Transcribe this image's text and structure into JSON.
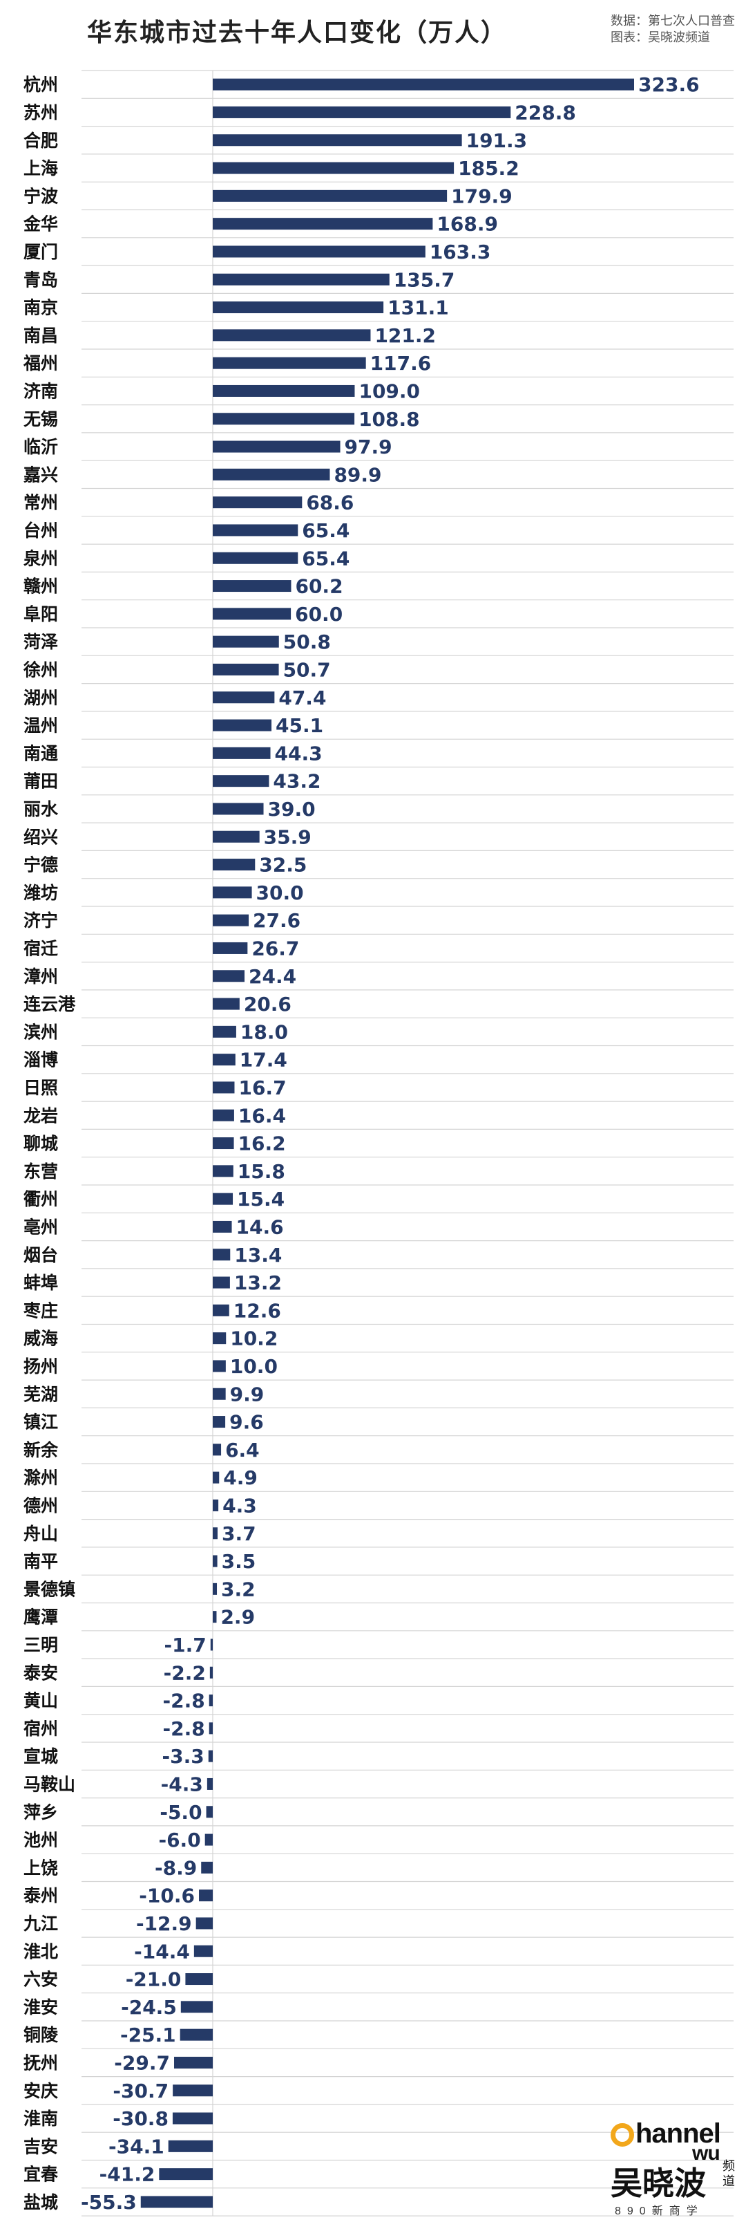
{
  "header": {
    "title": "华东城市过去十年人口变化（万人）",
    "source_line1": "数据：第七次人口普查",
    "source_line2": "图表：吴晓波频道"
  },
  "logo": {
    "top": "hannel",
    "top_wu": "wu",
    "main": "吴晓波",
    "side": "频道",
    "sub": "890新商学"
  },
  "colors": {
    "bar": "#253a67",
    "grid": "#d4d4d4",
    "label": "#253a67",
    "category": "#111111"
  },
  "chart_data": {
    "type": "bar",
    "orientation": "horizontal",
    "title": "华东城市过去十年人口变化（万人）",
    "grid": true,
    "categories": [
      "杭州",
      "苏州",
      "合肥",
      "上海",
      "宁波",
      "金华",
      "厦门",
      "青岛",
      "南京",
      "南昌",
      "福州",
      "济南",
      "无锡",
      "临沂",
      "嘉兴",
      "常州",
      "台州",
      "泉州",
      "赣州",
      "阜阳",
      "菏泽",
      "徐州",
      "湖州",
      "温州",
      "南通",
      "莆田",
      "丽水",
      "绍兴",
      "宁德",
      "潍坊",
      "济宁",
      "宿迁",
      "漳州",
      "连云港",
      "滨州",
      "淄博",
      "日照",
      "龙岩",
      "聊城",
      "东营",
      "衢州",
      "亳州",
      "烟台",
      "蚌埠",
      "枣庄",
      "威海",
      "扬州",
      "芜湖",
      "镇江",
      "新余",
      "滁州",
      "德州",
      "舟山",
      "南平",
      "景德镇",
      "鹰潭",
      "三明",
      "泰安",
      "黄山",
      "宿州",
      "宣城",
      "马鞍山",
      "萍乡",
      "池州",
      "上饶",
      "泰州",
      "九江",
      "淮北",
      "六安",
      "淮安",
      "铜陵",
      "抚州",
      "安庆",
      "淮南",
      "吉安",
      "宜春",
      "盐城"
    ],
    "values": [
      323.6,
      228.8,
      191.3,
      185.2,
      179.9,
      168.9,
      163.3,
      135.7,
      131.1,
      121.2,
      117.6,
      109.0,
      108.8,
      97.9,
      89.9,
      68.6,
      65.4,
      65.4,
      60.2,
      60.0,
      50.8,
      50.7,
      47.4,
      45.1,
      44.3,
      43.2,
      39.0,
      35.9,
      32.5,
      30.0,
      27.6,
      26.7,
      24.4,
      20.6,
      18.0,
      17.4,
      16.7,
      16.4,
      16.2,
      15.8,
      15.4,
      14.6,
      13.4,
      13.2,
      12.6,
      10.2,
      10.0,
      9.9,
      9.6,
      6.4,
      4.9,
      4.3,
      3.7,
      3.5,
      3.2,
      2.9,
      -1.7,
      -2.2,
      -2.8,
      -2.8,
      -3.3,
      -4.3,
      -5.0,
      -6.0,
      -8.9,
      -10.6,
      -12.9,
      -14.4,
      -21.0,
      -24.5,
      -25.1,
      -29.7,
      -30.7,
      -30.8,
      -34.1,
      -41.2,
      -55.3
    ],
    "value_labels": [
      "323.6",
      "228.8",
      "191.3",
      "185.2",
      "179.9",
      "168.9",
      "163.3",
      "135.7",
      "131.1",
      "121.2",
      "117.6",
      "109.0",
      "108.8",
      "97.9",
      "89.9",
      "68.6",
      "65.4",
      "65.4",
      "60.2",
      "60.0",
      "50.8",
      "50.7",
      "47.4",
      "45.1",
      "44.3",
      "43.2",
      "39.0",
      "35.9",
      "32.5",
      "30.0",
      "27.6",
      "26.7",
      "24.4",
      "20.6",
      "18.0",
      "17.4",
      "16.7",
      "16.4",
      "16.2",
      "15.8",
      "15.4",
      "14.6",
      "13.4",
      "13.2",
      "12.6",
      "10.2",
      "10.0",
      "9.9",
      "9.6",
      "6.4",
      "4.9",
      "4.3",
      "3.7",
      "3.5",
      "3.2",
      "2.9",
      "-1.7",
      "-2.2",
      "-2.8",
      "-2.8",
      "-3.3",
      "-4.3",
      "-5.0",
      "-6.0",
      "-8.9",
      "-10.6",
      "-12.9",
      "-14.4",
      "-21.0",
      "-24.5",
      "-25.1",
      "-29.7",
      "-30.7",
      "-30.8",
      "-34.1",
      "-41.2",
      "-55.3"
    ]
  }
}
